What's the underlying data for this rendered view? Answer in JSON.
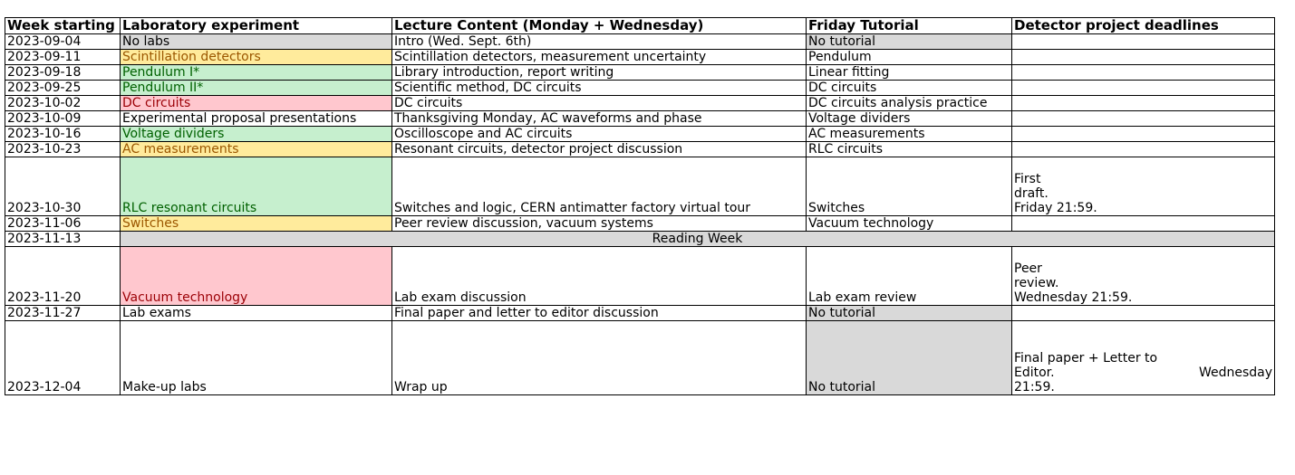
{
  "headers": [
    "Week starting",
    "Laboratory experiment",
    "Lecture Content (Monday + Wednesday)",
    "Friday Tutorial",
    "Detector project deadlines"
  ],
  "rows": [
    {
      "date": "2023-09-04",
      "lab": "No labs",
      "lab_style": "gray",
      "lecture": "Intro (Wed. Sept. 6th)",
      "tutorial": "No tutorial",
      "tut_style": "gray",
      "deadline": ""
    },
    {
      "date": "2023-09-11",
      "lab": "Scintillation detectors",
      "lab_style": "yellow",
      "lecture": "Scintillation detectors, measurement uncertainty",
      "tutorial": "Pendulum",
      "tut_style": "",
      "deadline": ""
    },
    {
      "date": "2023-09-18",
      "lab": "Pendulum I*",
      "lab_style": "green",
      "lecture": "Library introduction, report writing",
      "tutorial": "Linear fitting",
      "tut_style": "",
      "deadline": ""
    },
    {
      "date": "2023-09-25",
      "lab": "Pendulum II*",
      "lab_style": "green",
      "lecture": "Scientific method, DC circuits",
      "tutorial": "DC circuits",
      "tut_style": "",
      "deadline": ""
    },
    {
      "date": "2023-10-02",
      "lab": "DC circuits",
      "lab_style": "red",
      "lecture": "DC circuits",
      "tutorial": "DC circuits analysis practice",
      "tut_style": "",
      "deadline": ""
    },
    {
      "date": "2023-10-09",
      "lab": "Experimental proposal presentations",
      "lab_style": "",
      "lecture": "Thanksgiving Monday, AC waveforms and phase",
      "tutorial": "Voltage dividers",
      "tut_style": "",
      "deadline": ""
    },
    {
      "date": "2023-10-16",
      "lab": "Voltage dividers",
      "lab_style": "green",
      "lecture": "Oscilloscope and AC circuits",
      "tutorial": "AC measurements",
      "tut_style": "",
      "deadline": ""
    },
    {
      "date": "2023-10-23",
      "lab": "AC measurements",
      "lab_style": "yellow",
      "lecture": "Resonant circuits, detector project discussion",
      "tutorial": "RLC circuits",
      "tut_style": "",
      "deadline": ""
    },
    {
      "date": "2023-10-30",
      "lab": "RLC resonant circuits",
      "lab_style": "green",
      "lecture": "Switches and logic, CERN antimatter factory virtual tour",
      "tutorial": "Switches",
      "tut_style": "",
      "deadline_lines": [
        "First",
        "draft.",
        "Friday 21:59."
      ]
    },
    {
      "date": "2023-11-06",
      "lab": "Switches",
      "lab_style": "yellow",
      "lecture": "Peer review discussion, vacuum systems",
      "tutorial": "Vacuum technology",
      "tut_style": "",
      "deadline": ""
    },
    {
      "date": "2023-11-13",
      "merged": "Reading Week"
    },
    {
      "date": "2023-11-20",
      "lab": "Vacuum technology",
      "lab_style": "red",
      "lecture": "Lab exam discussion",
      "tutorial": "Lab exam review",
      "tut_style": "",
      "deadline_lines": [
        "Peer",
        "review.",
        "Wednesday 21:59."
      ]
    },
    {
      "date": "2023-11-27",
      "lab": "Lab exams",
      "lab_style": "",
      "lecture": "Final paper and letter to editor discussion",
      "tutorial": "No tutorial",
      "tut_style": "gray",
      "deadline": ""
    },
    {
      "date": "2023-12-04",
      "lab": "Make-up labs",
      "lab_style": "",
      "lecture": "Wrap up",
      "tutorial": "No tutorial",
      "tut_style": "gray",
      "deadline_lines": [
        "Final paper + Letter to",
        "Editor.|Wednesday",
        "21:59."
      ]
    }
  ],
  "colors": {
    "gray": "#d9d9d9",
    "yellow_fill": "#ffeb9c",
    "green_fill": "#c6efce",
    "red_fill": "#ffc7ce"
  }
}
